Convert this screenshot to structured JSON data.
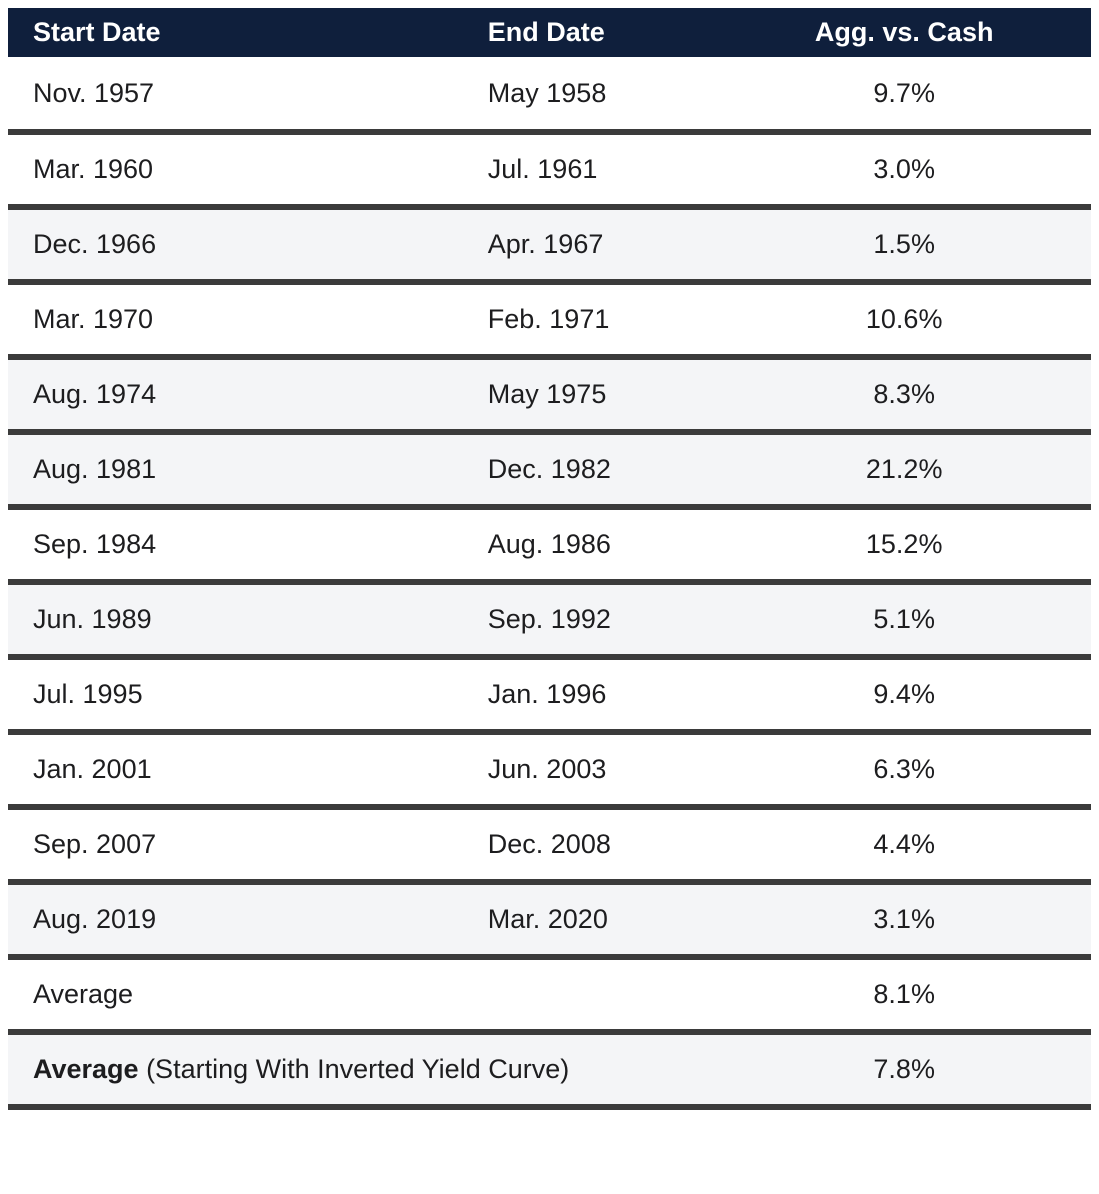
{
  "chart_data": {
    "type": "table",
    "columns": [
      {
        "label": "Start Date"
      },
      {
        "label": "End Date"
      },
      {
        "label": "Agg. vs. Cash"
      }
    ],
    "rows": [
      {
        "start": "Nov. 1957",
        "end": "May 1958",
        "value": "9.7%",
        "shaded": false
      },
      {
        "start": "Mar. 1960",
        "end": "Jul. 1961",
        "value": "3.0%",
        "shaded": false
      },
      {
        "start": "Dec. 1966",
        "end": "Apr. 1967",
        "value": "1.5%",
        "shaded": true
      },
      {
        "start": "Mar. 1970",
        "end": "Feb. 1971",
        "value": "10.6%",
        "shaded": false
      },
      {
        "start": "Aug. 1974",
        "end": "May 1975",
        "value": "8.3%",
        "shaded": true
      },
      {
        "start": "Aug. 1981",
        "end": "Dec. 1982",
        "value": "21.2%",
        "shaded": true
      },
      {
        "start": "Sep. 1984",
        "end": "Aug. 1986",
        "value": "15.2%",
        "shaded": false
      },
      {
        "start": "Jun. 1989",
        "end": "Sep. 1992",
        "value": "5.1%",
        "shaded": true
      },
      {
        "start": "Jul. 1995",
        "end": "Jan. 1996",
        "value": "9.4%",
        "shaded": false
      },
      {
        "start": "Jan. 2001",
        "end": "Jun. 2003",
        "value": "6.3%",
        "shaded": false
      },
      {
        "start": "Sep. 2007",
        "end": "Dec. 2008",
        "value": "4.4%",
        "shaded": false
      },
      {
        "start": "Aug. 2019",
        "end": "Mar. 2020",
        "value": "3.1%",
        "shaded": true
      }
    ],
    "summary_rows": [
      {
        "label": "Average",
        "label_bold": "",
        "label_suffix": "",
        "value": "8.1%",
        "shaded": false
      },
      {
        "label": "",
        "label_bold": "Average",
        "label_suffix": " (Starting With Inverted Yield Curve)",
        "value": "7.8%",
        "shaded": true
      }
    ]
  },
  "colors": {
    "header_bg": "#0f1f3c",
    "header_fg": "#ffffff",
    "divider": "#3b3b3b",
    "row_bg": "#ffffff",
    "shaded_row_bg": "#f4f5f7",
    "text": "#1d1d1f"
  }
}
